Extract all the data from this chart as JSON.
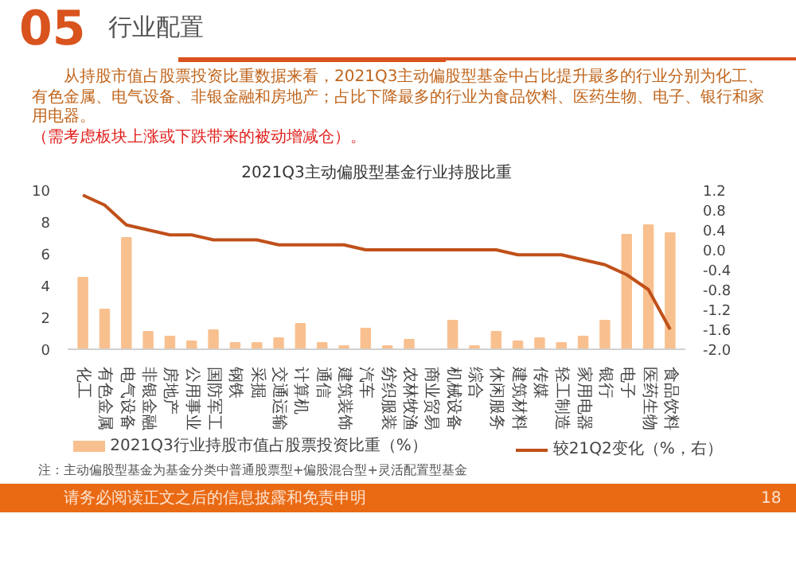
{
  "chart_data": {
    "type": "bar",
    "title": "2021Q3主动偏股型基金行业持股比重",
    "categories": [
      "化工",
      "有色金属",
      "电气设备",
      "非银金融",
      "房地产",
      "公用事业",
      "国防军工",
      "钢铁",
      "采掘",
      "交通运输",
      "计算机",
      "通信",
      "建筑装饰",
      "汽车",
      "纺织服装",
      "农林牧渔",
      "商业贸易",
      "机械设备",
      "综合",
      "休闲服务",
      "建筑材料",
      "传媒",
      "轻工制造",
      "家用电器",
      "银行",
      "电子",
      "医药生物",
      "食品饮料"
    ],
    "series": [
      {
        "name": "2021Q3行业持股市值占股票投资比重（%）",
        "color": "#f9c08f",
        "values": [
          4.5,
          2.5,
          7.0,
          1.1,
          0.8,
          0.5,
          1.2,
          0.4,
          0.4,
          0.7,
          1.6,
          0.4,
          0.2,
          1.3,
          0.2,
          0.6,
          0.0,
          1.8,
          0.2,
          1.1,
          0.5,
          0.7,
          0.4,
          0.8,
          1.8,
          7.2,
          7.8,
          7.3
        ]
      },
      {
        "name": "较21Q2变化（%，右）",
        "type": "line",
        "axis": "y2",
        "color": "#c0501a",
        "values": [
          1.1,
          0.9,
          0.5,
          0.4,
          0.3,
          0.3,
          0.2,
          0.2,
          0.2,
          0.1,
          0.1,
          0.1,
          0.1,
          0.0,
          0.0,
          0.0,
          0.0,
          0.0,
          0.0,
          0.0,
          -0.1,
          -0.1,
          -0.1,
          -0.2,
          -0.3,
          -0.5,
          -0.8,
          -1.6
        ]
      }
    ],
    "ylim": [
      0,
      10
    ],
    "yticks": [
      0,
      2,
      4,
      6,
      8,
      10
    ],
    "y2lim": [
      -2.0,
      1.2
    ],
    "y2ticks": [
      {
        "value": 1.2,
        "label": "1.2"
      },
      {
        "value": 0.8,
        "label": "0.8"
      },
      {
        "value": 0.4,
        "label": "0.4"
      },
      {
        "value": 0,
        "label": "0.0"
      },
      {
        "value": -0.4,
        "label": "-0.4"
      },
      {
        "value": -0.8,
        "label": "-0.8"
      },
      {
        "value": -1.2,
        "label": "-1.2"
      },
      {
        "value": -1.6,
        "label": "-1.6"
      },
      {
        "value": -2.0,
        "label": "-2.0"
      }
    ],
    "legend": "bottom",
    "annotations": [
      "05",
      "行业配置",
      "从持股市值占股票投资比重数据来看，2021Q3主动偏股型基金中占比提升最多的行业分别为化工、有色金属、电气设备、非银金融和房地产；占比下降最多的行业为食品饮料、医药生物、电子、银行和家用电器。",
      "（需考虑板块上涨或下跌带来的被动增减仓）。",
      "注：主动偏股型基金为基金分类中普通股票型+偏股混合型+灵活配置型基金",
      "请务必阅读正文之后的信息披露和免责申明",
      "18"
    ]
  }
}
